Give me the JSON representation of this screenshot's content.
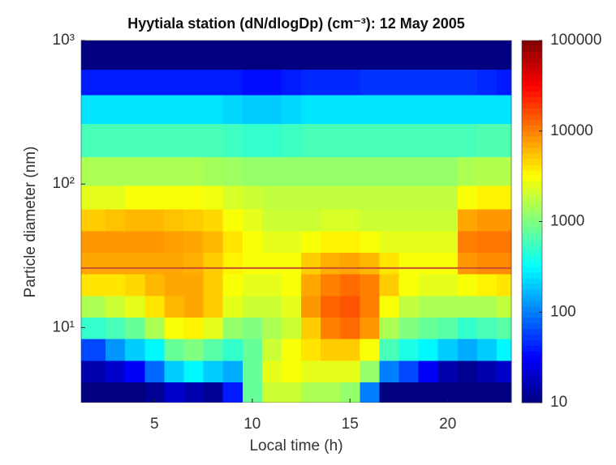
{
  "chart_data": {
    "type": "heatmap",
    "title": "Hyytiala station (dN/dlogDp) (cm⁻³): 12 May 2005",
    "x_label": "Local time (h)",
    "y_label": "Particle diameter (nm)",
    "xlim": [
      1.25,
      23.25
    ],
    "xticks": [
      5,
      10,
      15,
      20
    ],
    "ylim": [
      3,
      1000
    ],
    "y_log": true,
    "yticks": [
      {
        "value": 10,
        "label": "10¹"
      },
      {
        "value": 100,
        "label": "10²"
      },
      {
        "value": 1000,
        "label": "10³"
      }
    ],
    "x": [
      2,
      3,
      4,
      5,
      6,
      7,
      8,
      9,
      10,
      11,
      12,
      13,
      14,
      15,
      16,
      17,
      18,
      19,
      20,
      21,
      22,
      23
    ],
    "y": [
      3.5,
      5,
      7,
      10,
      14,
      20,
      28,
      40,
      56,
      80,
      120,
      200,
      350,
      500,
      800
    ],
    "z": [
      [
        10,
        10,
        10,
        12,
        20,
        15,
        12,
        40,
        800,
        2000,
        2000,
        1500,
        1500,
        1200,
        100,
        10,
        10,
        10,
        10,
        10,
        10,
        10
      ],
      [
        15,
        20,
        30,
        80,
        200,
        300,
        200,
        150,
        800,
        2500,
        3000,
        2500,
        2500,
        2500,
        1200,
        100,
        60,
        30,
        15,
        12,
        15,
        20
      ],
      [
        60,
        120,
        200,
        300,
        800,
        1000,
        700,
        500,
        800,
        2000,
        3000,
        4000,
        5000,
        5000,
        3000,
        600,
        400,
        300,
        200,
        150,
        200,
        300
      ],
      [
        500,
        600,
        800,
        1500,
        3000,
        3500,
        2500,
        1200,
        1000,
        1500,
        2000,
        5000,
        10000,
        12000,
        8000,
        1500,
        1000,
        800,
        700,
        500,
        600,
        700
      ],
      [
        1500,
        2000,
        2500,
        4000,
        6000,
        7000,
        5000,
        2500,
        2000,
        2000,
        2500,
        8000,
        13000,
        15000,
        10000,
        3000,
        1800,
        1500,
        1500,
        1500,
        1500,
        1800
      ],
      [
        4000,
        4000,
        4500,
        6000,
        7000,
        7000,
        5000,
        3000,
        2500,
        2500,
        3000,
        7000,
        10000,
        12000,
        10000,
        5000,
        3000,
        2500,
        2500,
        3000,
        3500,
        4000
      ],
      [
        7000,
        7000,
        7000,
        7000,
        7000,
        6500,
        5000,
        3500,
        3000,
        3000,
        3000,
        5000,
        6500,
        7000,
        6000,
        4000,
        3000,
        3000,
        3000,
        8000,
        9000,
        9000
      ],
      [
        8000,
        8000,
        8000,
        8000,
        7500,
        7000,
        6000,
        4000,
        3000,
        2500,
        2500,
        3000,
        3500,
        3500,
        3000,
        2500,
        2500,
        2500,
        2500,
        10000,
        11000,
        11000
      ],
      [
        5000,
        5500,
        6000,
        6000,
        5500,
        5000,
        4500,
        3000,
        2500,
        2000,
        2000,
        2000,
        2200,
        2200,
        2000,
        2000,
        2000,
        2000,
        2000,
        7000,
        8000,
        8000
      ],
      [
        2500,
        2500,
        3000,
        3000,
        3000,
        3000,
        2800,
        2200,
        2000,
        1800,
        1800,
        1800,
        1800,
        1800,
        1800,
        1800,
        1800,
        1800,
        1800,
        3000,
        3500,
        3500
      ],
      [
        1500,
        1500,
        1500,
        1500,
        1500,
        1500,
        1400,
        1300,
        1200,
        1200,
        1200,
        1200,
        1200,
        1200,
        1200,
        1200,
        1200,
        1200,
        1200,
        1500,
        1600,
        1600
      ],
      [
        600,
        600,
        600,
        600,
        600,
        600,
        600,
        550,
        500,
        500,
        550,
        600,
        600,
        600,
        600,
        600,
        600,
        600,
        600,
        600,
        650,
        650
      ],
      [
        250,
        250,
        250,
        250,
        250,
        250,
        250,
        220,
        200,
        200,
        220,
        250,
        250,
        250,
        250,
        250,
        250,
        250,
        250,
        250,
        250,
        250
      ],
      [
        40,
        40,
        40,
        40,
        40,
        40,
        40,
        40,
        35,
        35,
        40,
        45,
        45,
        45,
        50,
        50,
        50,
        50,
        50,
        50,
        45,
        40
      ],
      [
        10,
        10,
        10,
        10,
        10,
        10,
        10,
        10,
        10,
        10,
        10,
        10,
        10,
        10,
        10,
        10,
        10,
        10,
        10,
        10,
        10,
        10
      ]
    ],
    "colorbar": {
      "lim": [
        10,
        100000
      ],
      "log": true,
      "ticks": [
        10,
        100,
        1000,
        10000,
        100000
      ]
    },
    "hline": {
      "value": 26,
      "color": "#c8502a"
    }
  }
}
